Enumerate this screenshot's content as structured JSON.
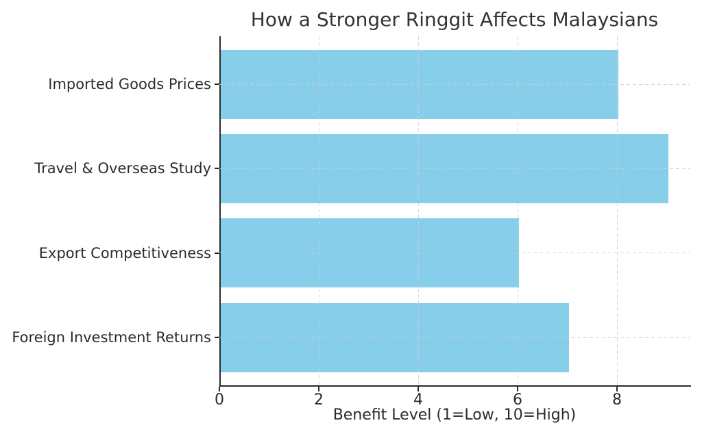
{
  "chart_data": {
    "type": "bar",
    "orientation": "horizontal",
    "title": "How a Stronger Ringgit Affects Malaysians",
    "categories": [
      "Imported Goods Prices",
      "Travel & Overseas Study",
      "Export Competitiveness",
      "Foreign Investment Returns"
    ],
    "values": [
      8,
      9,
      6,
      7
    ],
    "xlabel": "Benefit Level (1=Low, 10=High)",
    "ylabel": "",
    "xticks": [
      0,
      2,
      4,
      6,
      8
    ],
    "xlim": [
      0,
      9.45
    ],
    "bar_color": "#87CEEB",
    "grid": {
      "on": true,
      "style": "dashed",
      "color": "#cccccc",
      "vertical_at_ticks": [
        2,
        4,
        6,
        8
      ],
      "horizontal_at": "category-centers"
    },
    "legend": "none",
    "background": "#ffffff",
    "spine_color": "#2a2a2a"
  }
}
